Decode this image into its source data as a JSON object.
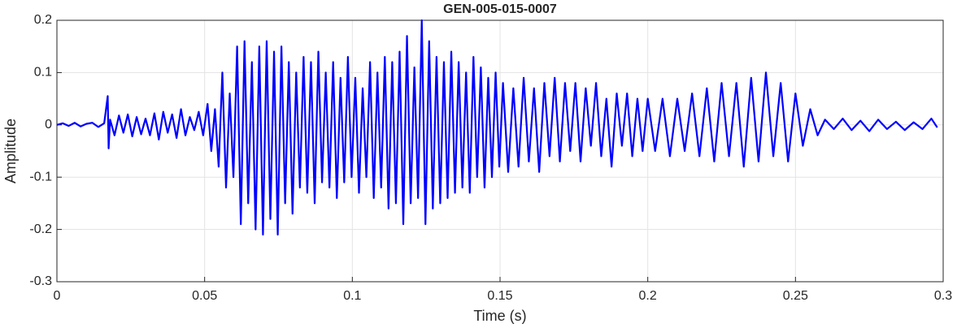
{
  "chart_data": {
    "type": "line",
    "title": "GEN-005-015-0007",
    "x_label": "Time (s)",
    "y_label": "Amplitude",
    "xlim": [
      0,
      0.3
    ],
    "ylim": [
      -0.3,
      0.2
    ],
    "xticks": [
      0,
      0.05,
      0.1,
      0.15,
      0.2,
      0.25,
      0.3
    ],
    "yticks": [
      -0.3,
      -0.2,
      -0.1,
      0,
      0.1,
      0.2
    ],
    "grid": true,
    "x": [
      0,
      0.002,
      0.004,
      0.006,
      0.008,
      0.01,
      0.012,
      0.014,
      0.016,
      0.0172,
      0.0175,
      0.018,
      0.0195,
      0.021,
      0.0225,
      0.024,
      0.0255,
      0.027,
      0.0285,
      0.03,
      0.0315,
      0.033,
      0.0345,
      0.036,
      0.0375,
      0.039,
      0.0405,
      0.042,
      0.0435,
      0.045,
      0.0465,
      0.048,
      0.0495,
      0.051,
      0.05225,
      0.0535,
      0.05475,
      0.056,
      0.05725,
      0.0585,
      0.05975,
      0.061,
      0.06225,
      0.0635,
      0.06475,
      0.066,
      0.06725,
      0.0685,
      0.06975,
      0.071,
      0.07225,
      0.0735,
      0.07475,
      0.076,
      0.07725,
      0.0785,
      0.07975,
      0.081,
      0.08225,
      0.0835,
      0.08475,
      0.086,
      0.08725,
      0.0885,
      0.08975,
      0.091,
      0.09225,
      0.0935,
      0.09475,
      0.096,
      0.09725,
      0.0985,
      0.09975,
      0.101,
      0.10225,
      0.1035,
      0.10475,
      0.106,
      0.10725,
      0.1085,
      0.10975,
      0.111,
      0.11225,
      0.1135,
      0.11475,
      0.116,
      0.11725,
      0.1185,
      0.11975,
      0.121,
      0.12225,
      0.1235,
      0.12475,
      0.126,
      0.12725,
      0.1285,
      0.12975,
      0.131,
      0.13225,
      0.1335,
      0.13475,
      0.136,
      0.13725,
      0.1385,
      0.13975,
      0.141,
      0.14225,
      0.1435,
      0.14475,
      0.146,
      0.14725,
      0.1485,
      0.14975,
      0.151,
      0.15275,
      0.1545,
      0.15625,
      0.158,
      0.15975,
      0.1615,
      0.16325,
      0.165,
      0.16675,
      0.1685,
      0.17025,
      0.172,
      0.17375,
      0.1755,
      0.17725,
      0.179,
      0.18075,
      0.1825,
      0.18425,
      0.186,
      0.18775,
      0.1895,
      0.19125,
      0.193,
      0.19475,
      0.1965,
      0.19825,
      0.2,
      0.2025,
      0.205,
      0.2075,
      0.21,
      0.2125,
      0.215,
      0.2175,
      0.22,
      0.2225,
      0.225,
      0.2275,
      0.23,
      0.2325,
      0.235,
      0.2375,
      0.24,
      0.2425,
      0.245,
      0.2475,
      0.25,
      0.2525,
      0.255,
      0.2575,
      0.26,
      0.263,
      0.266,
      0.269,
      0.272,
      0.275,
      0.278,
      0.281,
      0.284,
      0.287,
      0.29,
      0.293,
      0.296,
      0.298
    ],
    "series": [
      {
        "name": "Amplitude",
        "color": "#0000ff",
        "values": [
          0,
          0.003,
          -0.002,
          0.004,
          -0.003,
          0.002,
          0.004,
          -0.004,
          0.003,
          0.055,
          -0.045,
          0.01,
          -0.02,
          0.018,
          -0.015,
          0.02,
          -0.022,
          0.015,
          -0.018,
          0.012,
          -0.02,
          0.022,
          -0.028,
          0.025,
          -0.015,
          0.02,
          -0.025,
          0.03,
          -0.02,
          0.015,
          -0.01,
          0.025,
          -0.02,
          0.04,
          -0.05,
          0.03,
          -0.08,
          0.1,
          -0.12,
          0.06,
          -0.1,
          0.15,
          -0.19,
          0.16,
          -0.15,
          0.12,
          -0.2,
          0.15,
          -0.21,
          0.16,
          -0.18,
          0.14,
          -0.21,
          0.15,
          -0.15,
          0.12,
          -0.17,
          0.1,
          -0.12,
          0.13,
          -0.13,
          0.12,
          -0.15,
          0.14,
          -0.11,
          0.1,
          -0.12,
          0.12,
          -0.14,
          0.09,
          -0.11,
          0.13,
          -0.1,
          0.09,
          -0.13,
          0.07,
          -0.1,
          0.12,
          -0.14,
          0.1,
          -0.12,
          0.13,
          -0.16,
          0.12,
          -0.15,
          0.14,
          -0.19,
          0.17,
          -0.15,
          0.11,
          -0.14,
          0.2,
          -0.19,
          0.16,
          -0.16,
          0.13,
          -0.15,
          0.12,
          -0.14,
          0.14,
          -0.13,
          0.12,
          -0.12,
          0.1,
          -0.13,
          0.13,
          -0.1,
          0.11,
          -0.12,
          0.09,
          -0.1,
          0.1,
          -0.08,
          0.08,
          -0.09,
          0.07,
          -0.08,
          0.09,
          -0.07,
          0.07,
          -0.09,
          0.08,
          -0.06,
          0.09,
          -0.07,
          0.08,
          -0.05,
          0.08,
          -0.07,
          0.07,
          -0.04,
          0.08,
          -0.06,
          0.05,
          -0.08,
          0.06,
          -0.04,
          0.06,
          -0.06,
          0.05,
          -0.05,
          0.05,
          -0.05,
          0.05,
          -0.06,
          0.05,
          -0.05,
          0.06,
          -0.06,
          0.07,
          -0.07,
          0.08,
          -0.06,
          0.08,
          -0.08,
          0.09,
          -0.07,
          0.1,
          -0.06,
          0.08,
          -0.07,
          0.06,
          -0.04,
          0.03,
          -0.02,
          0.01,
          -0.008,
          0.012,
          -0.01,
          0.008,
          -0.012,
          0.01,
          -0.008,
          0.006,
          -0.01,
          0.005,
          -0.008,
          0.012,
          -0.005
        ]
      }
    ]
  }
}
